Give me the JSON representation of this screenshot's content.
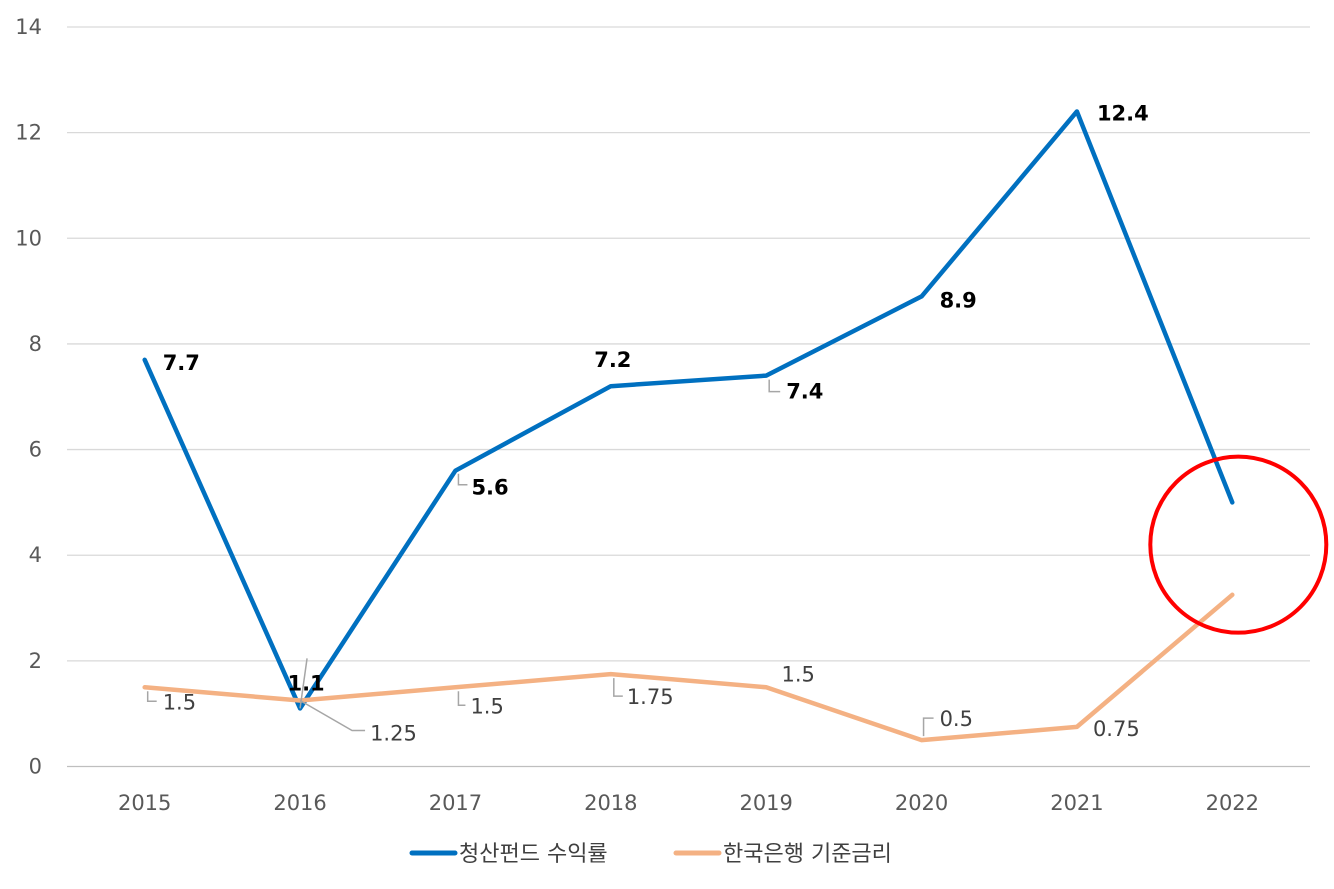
{
  "chart_data": {
    "type": "line",
    "categories": [
      "2015",
      "2016",
      "2017",
      "2018",
      "2019",
      "2020",
      "2021",
      "2022"
    ],
    "ylim": [
      0,
      14
    ],
    "yticks": [
      "0",
      "2",
      "4",
      "6",
      "8",
      "10",
      "12",
      "14"
    ],
    "grid": true,
    "legend_position": "bottom",
    "series": [
      {
        "name": "청산펀드 수익률",
        "color": "#0070C0",
        "values": [
          7.7,
          1.1,
          5.6,
          7.2,
          7.4,
          8.9,
          12.4,
          5.0
        ],
        "labels": [
          "7.7",
          "1.1",
          "5.6",
          "7.2",
          "7.4",
          "8.9",
          "12.4",
          null
        ]
      },
      {
        "name": "한국은행 기준금리",
        "color": "#F4B183",
        "values": [
          1.5,
          1.25,
          1.5,
          1.75,
          1.5,
          0.5,
          0.75,
          3.25
        ],
        "labels": [
          "1.5",
          "1.25",
          "1.5",
          "1.75",
          "1.5",
          "0.5",
          "0.75",
          null
        ]
      }
    ],
    "annotation": {
      "type": "circle",
      "category": "2022",
      "color": "#FF0000"
    }
  }
}
